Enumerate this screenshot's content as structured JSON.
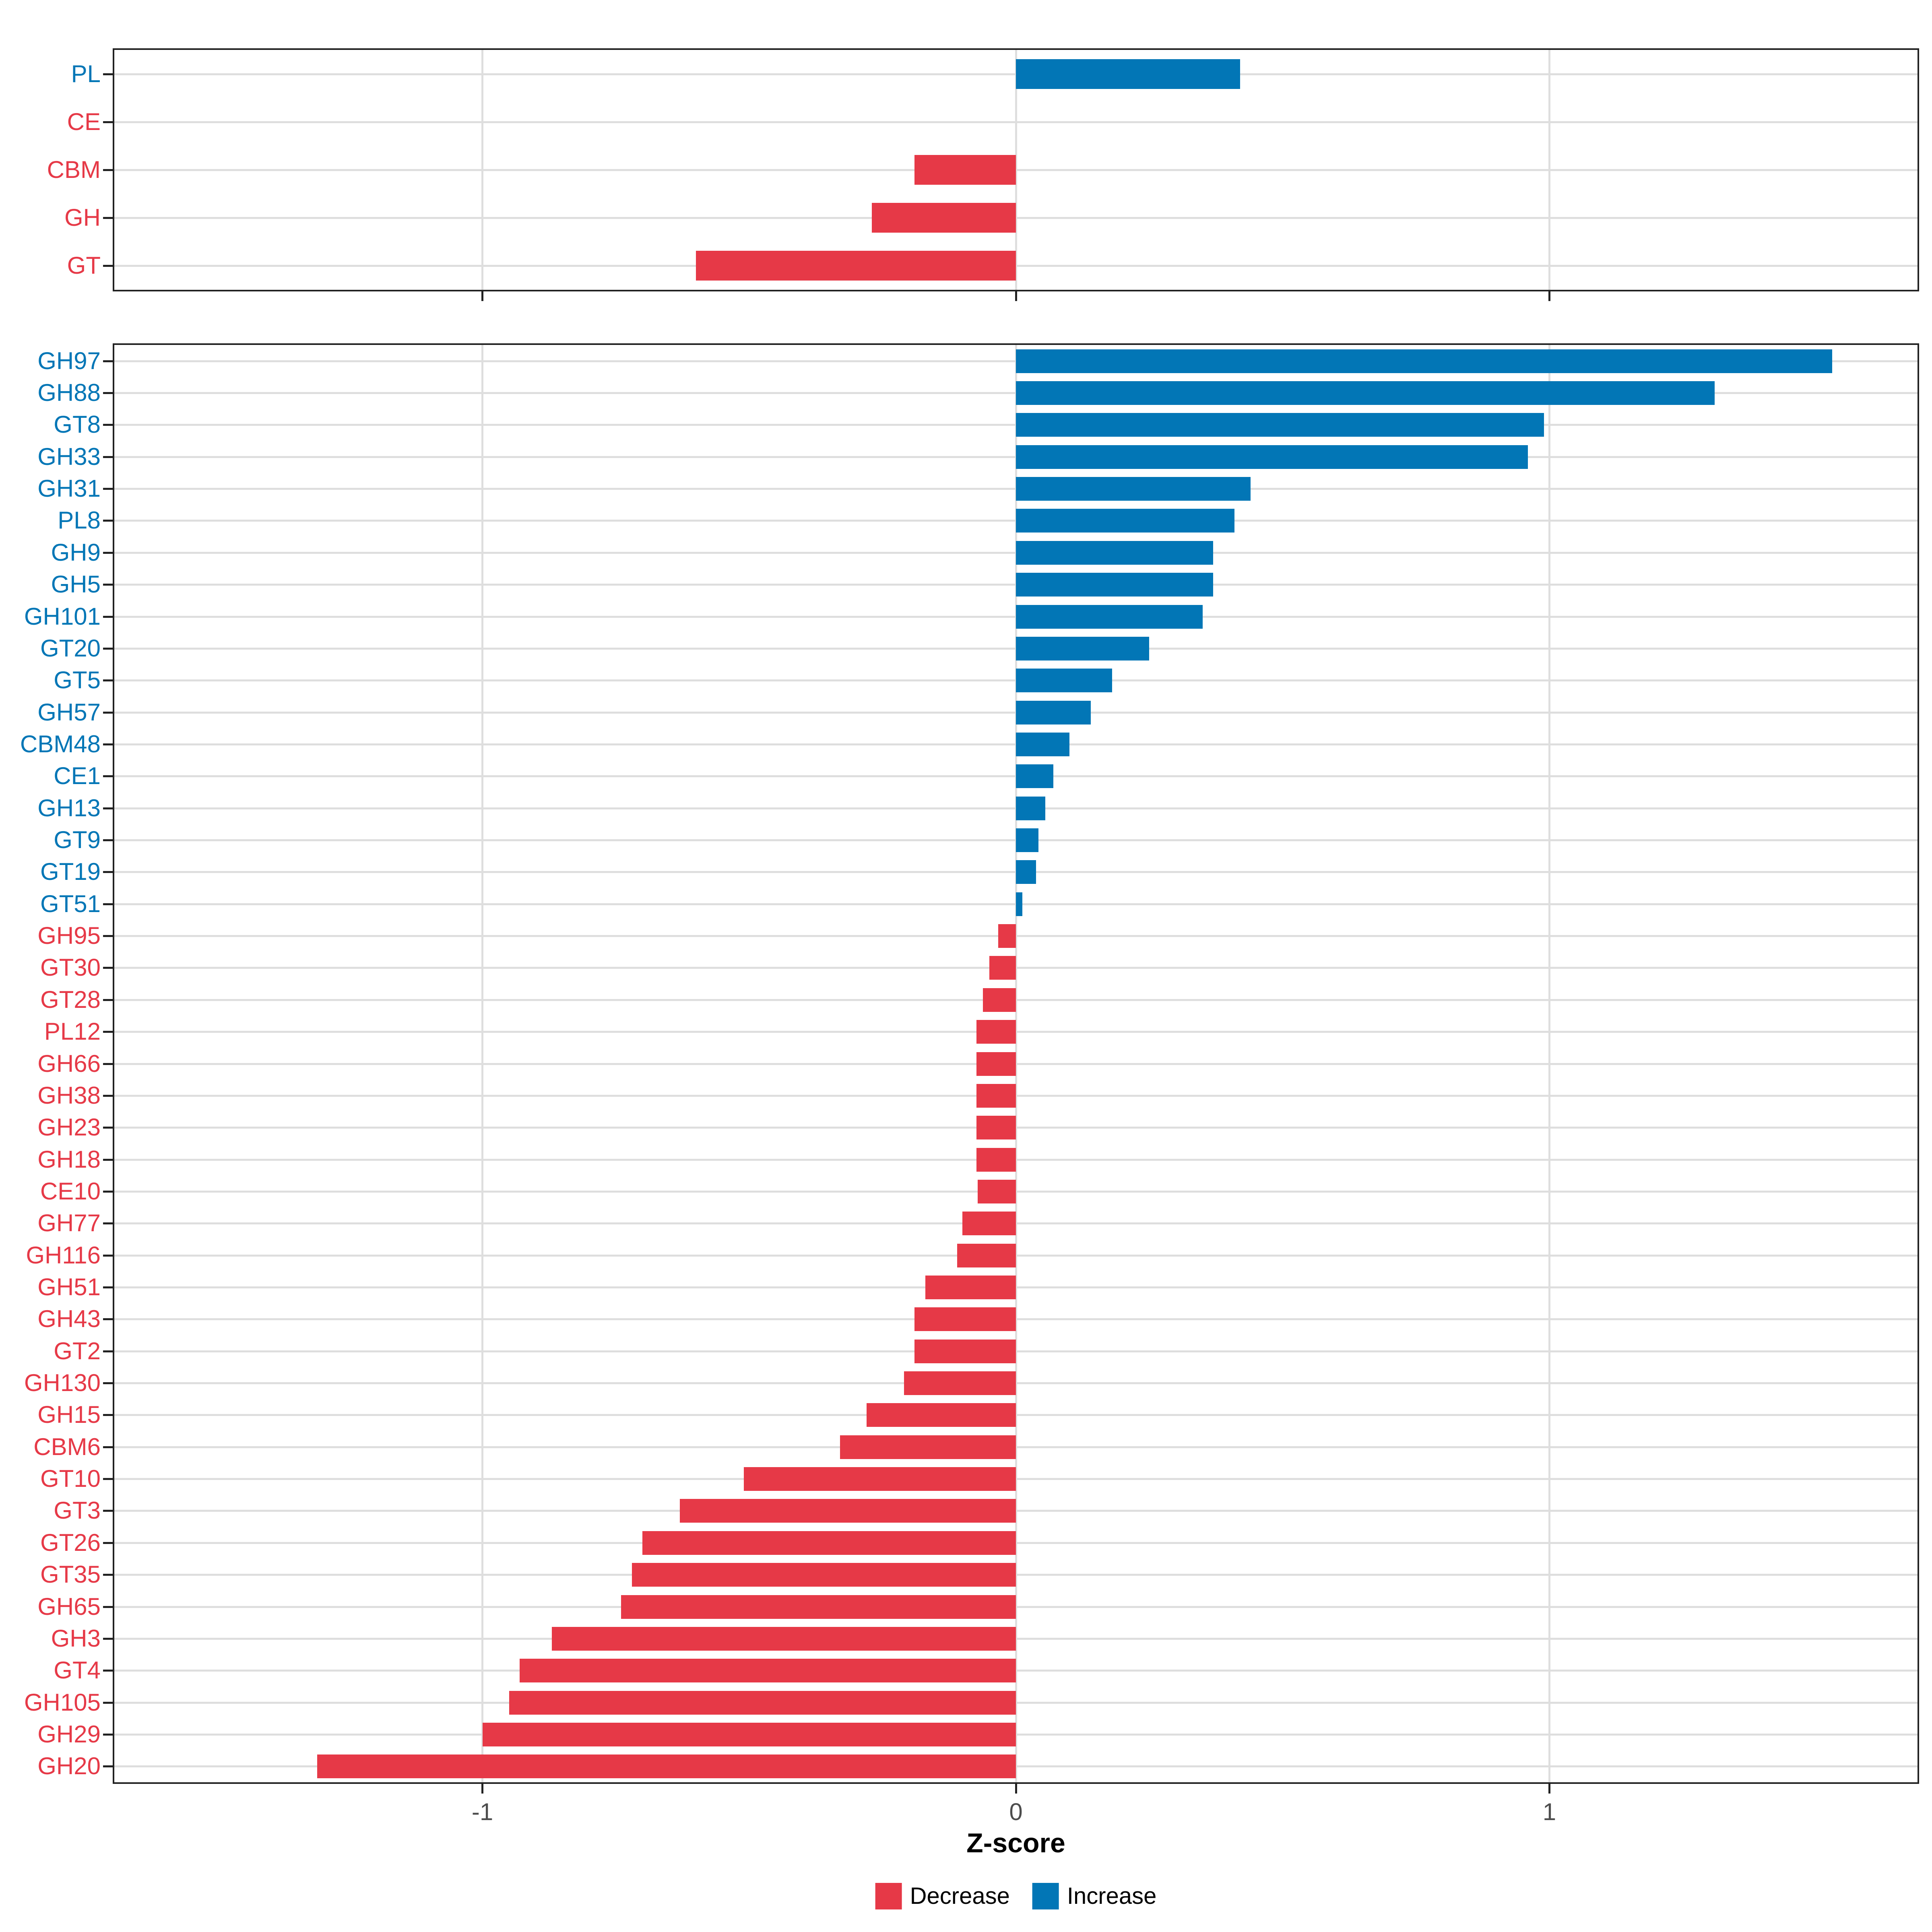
{
  "figure": {
    "xlabel": "Z-score",
    "xlim": [
      -1.69,
      1.69
    ],
    "x_ticks": [
      {
        "value": -1,
        "label": "-1"
      },
      {
        "value": 0,
        "label": "0"
      },
      {
        "value": 1,
        "label": "1"
      }
    ],
    "legend": [
      {
        "key": "decrease",
        "label": "Decrease",
        "color": "#e63947"
      },
      {
        "key": "increase",
        "label": "Increase",
        "color": "#0276b6"
      }
    ],
    "colors": {
      "increase": "#0276b6",
      "decrease": "#e63947",
      "grid": "#dedede",
      "border": "#222222",
      "tick_label": "#4d4d4d"
    }
  },
  "chart_data": [
    {
      "type": "bar",
      "orientation": "horizontal",
      "panel": "cazyme-class",
      "title": "",
      "xlabel": "Z-score",
      "xlim": [
        -1.69,
        1.69
      ],
      "xticks": [
        -1,
        0,
        1
      ],
      "grid": true,
      "legend_position": "bottom",
      "series": [
        {
          "category": "PL",
          "value": 0.42,
          "direction": "increase"
        },
        {
          "category": "CE",
          "value": 0.0,
          "direction": "decrease"
        },
        {
          "category": "CBM",
          "value": -0.19,
          "direction": "decrease"
        },
        {
          "category": "GH",
          "value": -0.27,
          "direction": "decrease"
        },
        {
          "category": "GT",
          "value": -0.6,
          "direction": "decrease"
        }
      ]
    },
    {
      "type": "bar",
      "orientation": "horizontal",
      "panel": "cazyme-family",
      "title": "",
      "xlabel": "Z-score",
      "xlim": [
        -1.69,
        1.69
      ],
      "xticks": [
        -1,
        0,
        1
      ],
      "grid": true,
      "legend_position": "bottom",
      "series": [
        {
          "category": "GH97",
          "value": 1.53,
          "direction": "increase"
        },
        {
          "category": "GH88",
          "value": 1.31,
          "direction": "increase"
        },
        {
          "category": "GT8",
          "value": 0.99,
          "direction": "increase"
        },
        {
          "category": "GH33",
          "value": 0.96,
          "direction": "increase"
        },
        {
          "category": "GH31",
          "value": 0.44,
          "direction": "increase"
        },
        {
          "category": "PL8",
          "value": 0.41,
          "direction": "increase"
        },
        {
          "category": "GH9",
          "value": 0.37,
          "direction": "increase"
        },
        {
          "category": "GH5",
          "value": 0.37,
          "direction": "increase"
        },
        {
          "category": "GH101",
          "value": 0.35,
          "direction": "increase"
        },
        {
          "category": "GT20",
          "value": 0.25,
          "direction": "increase"
        },
        {
          "category": "GT5",
          "value": 0.18,
          "direction": "increase"
        },
        {
          "category": "GH57",
          "value": 0.14,
          "direction": "increase"
        },
        {
          "category": "CBM48",
          "value": 0.1,
          "direction": "increase"
        },
        {
          "category": "CE1",
          "value": 0.07,
          "direction": "increase"
        },
        {
          "category": "GH13",
          "value": 0.055,
          "direction": "increase"
        },
        {
          "category": "GT9",
          "value": 0.042,
          "direction": "increase"
        },
        {
          "category": "GT19",
          "value": 0.038,
          "direction": "increase"
        },
        {
          "category": "GT51",
          "value": 0.012,
          "direction": "increase"
        },
        {
          "category": "GH95",
          "value": -0.033,
          "direction": "decrease"
        },
        {
          "category": "GT30",
          "value": -0.05,
          "direction": "decrease"
        },
        {
          "category": "GT28",
          "value": -0.062,
          "direction": "decrease"
        },
        {
          "category": "PL12",
          "value": -0.074,
          "direction": "decrease"
        },
        {
          "category": "GH66",
          "value": -0.074,
          "direction": "decrease"
        },
        {
          "category": "GH38",
          "value": -0.074,
          "direction": "decrease"
        },
        {
          "category": "GH23",
          "value": -0.074,
          "direction": "decrease"
        },
        {
          "category": "GH18",
          "value": -0.074,
          "direction": "decrease"
        },
        {
          "category": "CE10",
          "value": -0.072,
          "direction": "decrease"
        },
        {
          "category": "GH77",
          "value": -0.1,
          "direction": "decrease"
        },
        {
          "category": "GH116",
          "value": -0.11,
          "direction": "decrease"
        },
        {
          "category": "GH51",
          "value": -0.17,
          "direction": "decrease"
        },
        {
          "category": "GH43",
          "value": -0.19,
          "direction": "decrease"
        },
        {
          "category": "GT2",
          "value": -0.19,
          "direction": "decrease"
        },
        {
          "category": "GH130",
          "value": -0.21,
          "direction": "decrease"
        },
        {
          "category": "GH15",
          "value": -0.28,
          "direction": "decrease"
        },
        {
          "category": "CBM6",
          "value": -0.33,
          "direction": "decrease"
        },
        {
          "category": "GT10",
          "value": -0.51,
          "direction": "decrease"
        },
        {
          "category": "GT3",
          "value": -0.63,
          "direction": "decrease"
        },
        {
          "category": "GT26",
          "value": -0.7,
          "direction": "decrease"
        },
        {
          "category": "GT35",
          "value": -0.72,
          "direction": "decrease"
        },
        {
          "category": "GH65",
          "value": -0.74,
          "direction": "decrease"
        },
        {
          "category": "GH3",
          "value": -0.87,
          "direction": "decrease"
        },
        {
          "category": "GT4",
          "value": -0.93,
          "direction": "decrease"
        },
        {
          "category": "GH105",
          "value": -0.95,
          "direction": "decrease"
        },
        {
          "category": "GH29",
          "value": -1.0,
          "direction": "decrease"
        },
        {
          "category": "GH20",
          "value": -1.31,
          "direction": "decrease"
        }
      ]
    }
  ]
}
